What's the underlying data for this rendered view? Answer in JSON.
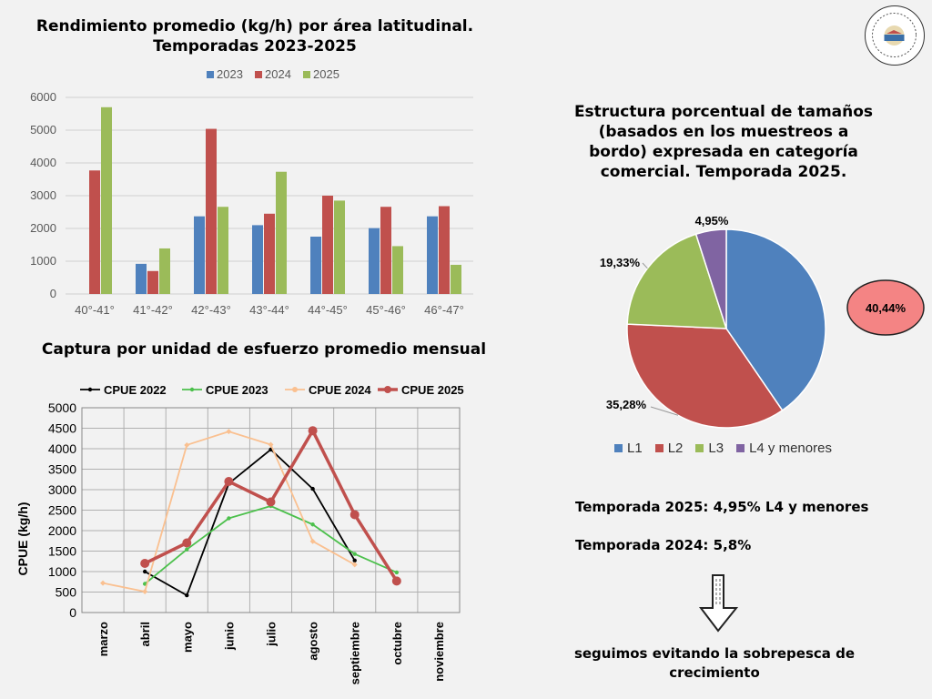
{
  "bar_title": [
    "Rendimiento promedio (kg/h) por área latitudinal.",
    "Temporadas 2023-2025"
  ],
  "line_title": "Captura por unidad de esfuerzo promedio mensual",
  "pie_title": [
    "Estructura porcentual de tamaños",
    "(basados en los muestreos a",
    "bordo) expresada en categoría",
    "comercial. Temporada 2025."
  ],
  "notes": {
    "n2025": "Temporada 2025: 4,95% L4 y menores",
    "n2024": "Temporada 2024: 5,8%",
    "conclusion": [
      "seguimos evitando la sobrepesca de",
      "crecimiento"
    ]
  },
  "colors": {
    "c2023": "#4f81bd",
    "c2024": "#c0504d",
    "c2025": "#9bbb59",
    "cpue2022": "#000000",
    "cpue2023": "#4cc04c",
    "cpue2024": "#fac090",
    "cpue2025": "#c0504d",
    "l4": "#8064a2",
    "highlight": "#f48484"
  },
  "chart_data": [
    {
      "type": "bar",
      "title": "Rendimiento promedio (kg/h) por área latitudinal. Temporadas 2023-2025",
      "categories": [
        "40°-41°",
        "41°-42°",
        "42°-43°",
        "43°-44°",
        "44°-45°",
        "45°-46°",
        "46°-47°"
      ],
      "series": [
        {
          "name": "2023",
          "values": [
            0,
            920,
            2370,
            2100,
            1750,
            2010,
            2370
          ]
        },
        {
          "name": "2024",
          "values": [
            3770,
            700,
            5040,
            2450,
            3000,
            2660,
            2680
          ]
        },
        {
          "name": "2025",
          "values": [
            5700,
            1390,
            2660,
            3730,
            2850,
            1460,
            890
          ]
        }
      ],
      "ylim": [
        0,
        6000
      ],
      "yticks": [
        "0",
        "1000",
        "2000",
        "3000",
        "4000",
        "5000",
        "6000"
      ],
      "legend": "top"
    },
    {
      "type": "line",
      "title": "Captura por unidad de esfuerzo promedio mensual",
      "categories": [
        "marzo",
        "abril",
        "mayo",
        "junio",
        "julio",
        "agosto",
        "septiembre",
        "octubre",
        "noviembre"
      ],
      "series": [
        {
          "name": "CPUE 2022",
          "values": [
            null,
            1000,
            420,
            3150,
            3980,
            3020,
            1270,
            null,
            null
          ]
        },
        {
          "name": "CPUE 2023",
          "values": [
            null,
            700,
            1540,
            2300,
            2600,
            2150,
            1430,
            980,
            null
          ]
        },
        {
          "name": "CPUE 2024",
          "values": [
            720,
            510,
            4090,
            4420,
            4100,
            1740,
            1170,
            null,
            null
          ]
        },
        {
          "name": "CPUE 2025",
          "values": [
            null,
            1200,
            1700,
            3200,
            2700,
            4440,
            2390,
            770,
            null
          ]
        }
      ],
      "ylabel": "CPUE (kg/h)",
      "ylim": [
        0,
        5000
      ],
      "yticks": [
        "0",
        "500",
        "1000",
        "1500",
        "2000",
        "2500",
        "3000",
        "3500",
        "4000",
        "4500",
        "5000"
      ],
      "legend": "top"
    },
    {
      "type": "pie",
      "title": "Estructura porcentual de tamaños (basados en los muestreos a bordo) expresada en categoría comercial. Temporada 2025.",
      "labels": [
        "L1",
        "L2",
        "L3",
        "L4 y menores"
      ],
      "values": [
        40.44,
        35.28,
        19.33,
        4.95
      ],
      "data_labels": [
        "40,44%",
        "35,28%",
        "19,33%",
        "4,95%"
      ],
      "legend": "bottom"
    }
  ]
}
